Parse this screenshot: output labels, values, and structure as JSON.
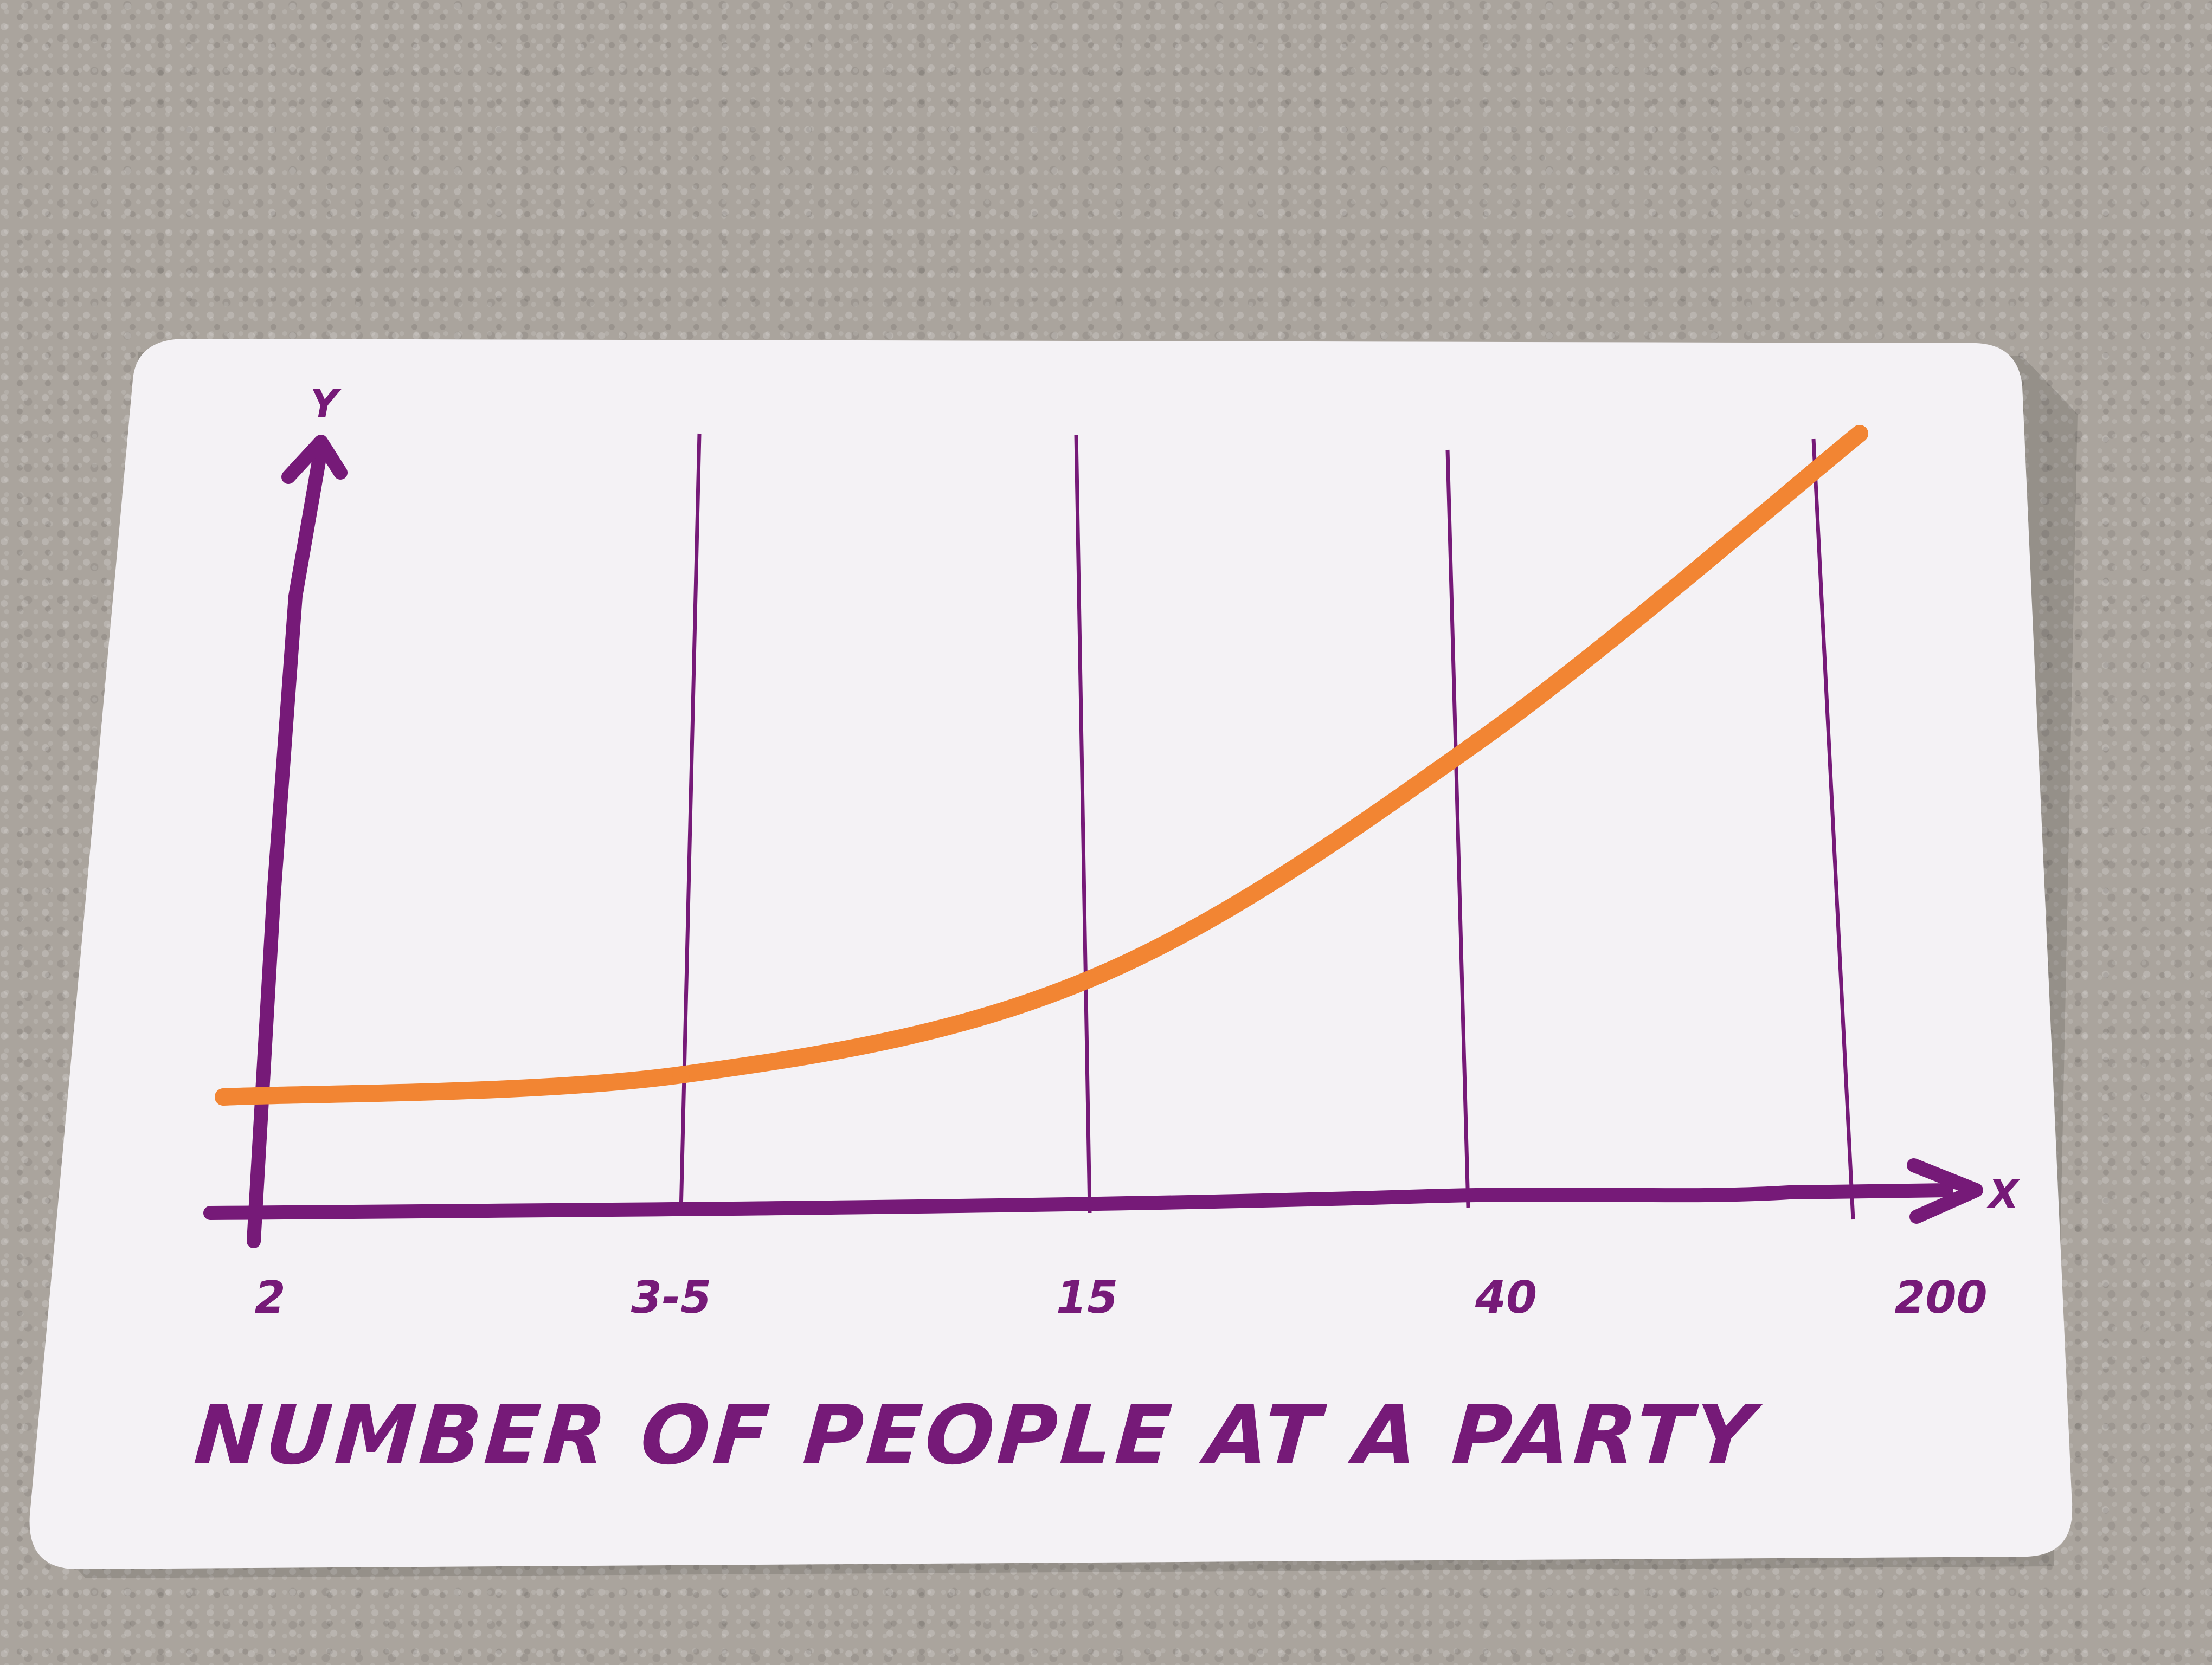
{
  "colors": {
    "axis": "#761a78",
    "curve": "#f28533",
    "card": "#f4f2f5",
    "background": "#aaa49d"
  },
  "chart_data": {
    "type": "line",
    "title": "NUMBER OF PEOPLE AT A PARTY",
    "xlabel": "X",
    "ylabel": "Y",
    "categories": [
      "2",
      "3-5",
      "15",
      "40",
      "200"
    ],
    "series": [
      {
        "values": [
          0.1,
          0.13,
          0.26,
          0.58,
          1.0
        ]
      }
    ],
    "ylim": [
      0,
      1
    ],
    "grid": "vertical lines at each category",
    "y_tick_labels": "none"
  }
}
